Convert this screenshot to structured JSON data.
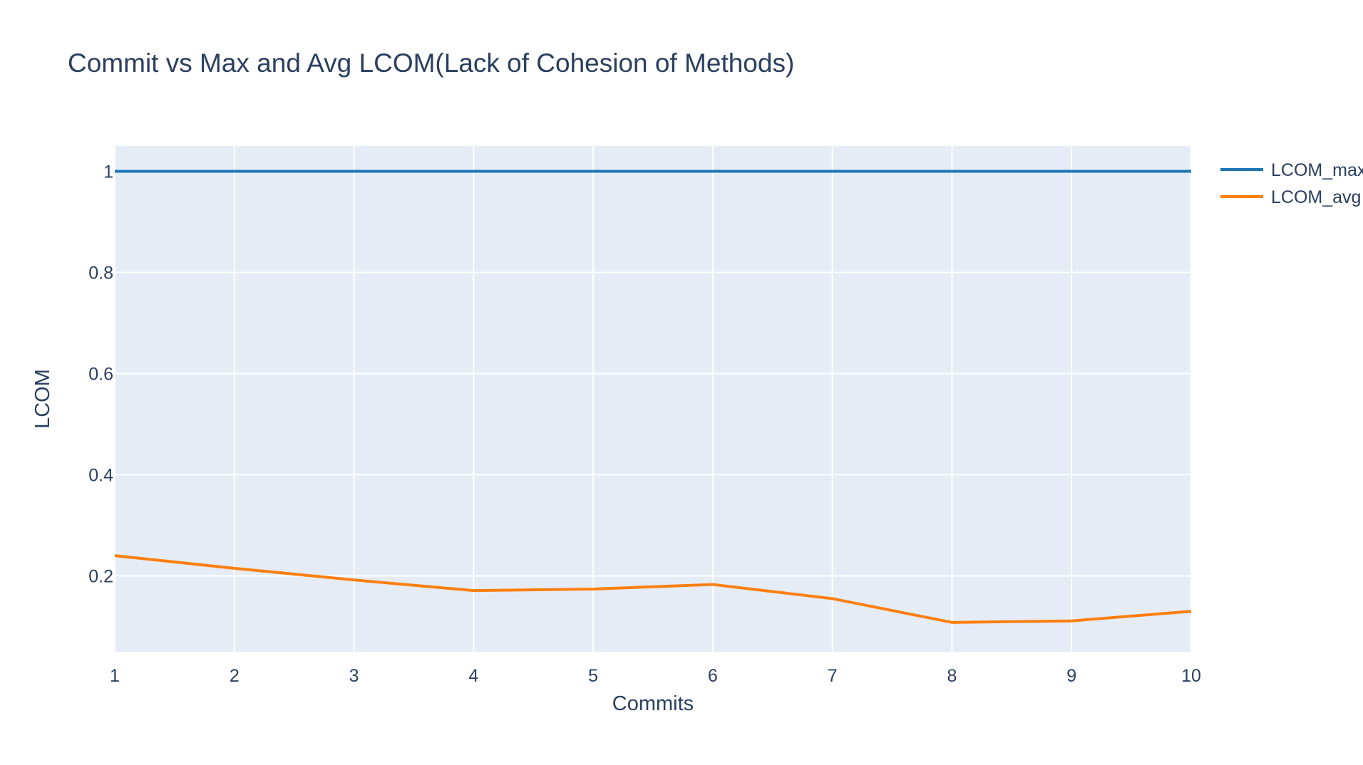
{
  "chart_data": {
    "type": "line",
    "title": "Commit vs Max and Avg LCOM(Lack of Cohesion of Methods)",
    "xlabel": "Commits",
    "ylabel": "LCOM",
    "x": [
      1,
      2,
      3,
      4,
      5,
      6,
      7,
      8,
      9,
      10
    ],
    "xlim": [
      1,
      10
    ],
    "ylim": [
      0.05,
      1.05
    ],
    "xticks": [
      1,
      2,
      3,
      4,
      5,
      6,
      7,
      8,
      9,
      10
    ],
    "yticks": [
      0.2,
      0.4,
      0.6,
      0.8,
      1
    ],
    "ytick_labels": [
      "0.2",
      "0.4",
      "0.6",
      "0.8",
      "1"
    ],
    "grid": true,
    "legend_position": "top-right",
    "series": [
      {
        "name": "LCOM_max",
        "color": "#1f77b4",
        "values": [
          1,
          1,
          1,
          1,
          1,
          1,
          1,
          1,
          1,
          1
        ]
      },
      {
        "name": "LCOM_avg",
        "color": "#ff7f0e",
        "values": [
          0.24,
          0.215,
          0.192,
          0.171,
          0.174,
          0.183,
          0.155,
          0.108,
          0.111,
          0.13
        ]
      }
    ],
    "colors": {
      "plot_bg": "#e5ecf6",
      "grid": "#ffffff",
      "text": "#2a3f5f"
    }
  }
}
